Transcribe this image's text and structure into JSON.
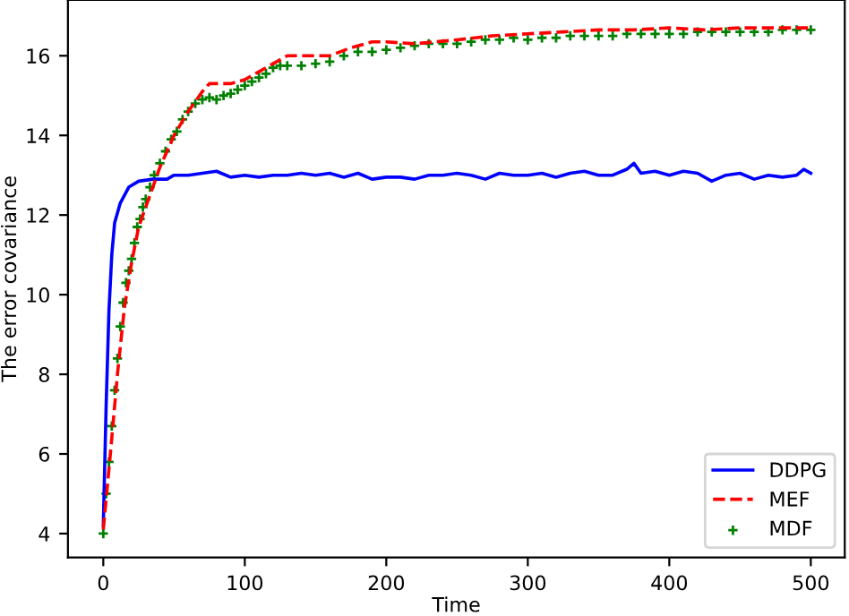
{
  "chart_data": {
    "type": "line",
    "xlabel": "Time",
    "ylabel": "The error covariance",
    "xlim": [
      -25,
      524
    ],
    "ylim": [
      3.4,
      17.4
    ],
    "xticks": [
      0,
      100,
      200,
      300,
      400,
      500
    ],
    "yticks": [
      4,
      6,
      8,
      10,
      12,
      14,
      16
    ],
    "grid": false,
    "legend": "bottom right",
    "series": [
      {
        "name": "DDPG",
        "color": "#0000ff",
        "line_style": "solid",
        "marker": "none",
        "x": [
          0,
          2,
          4,
          6,
          8,
          12,
          18,
          25,
          35,
          45,
          50,
          60,
          70,
          80,
          90,
          100,
          110,
          120,
          130,
          140,
          150,
          160,
          170,
          180,
          190,
          200,
          210,
          220,
          230,
          240,
          250,
          260,
          270,
          280,
          290,
          300,
          310,
          320,
          330,
          340,
          350,
          360,
          370,
          375,
          380,
          390,
          400,
          410,
          420,
          430,
          440,
          450,
          460,
          470,
          480,
          490,
          495,
          500
        ],
        "values": [
          4.2,
          7.2,
          9.6,
          11.0,
          11.8,
          12.3,
          12.7,
          12.85,
          12.9,
          12.9,
          13.0,
          13.0,
          13.05,
          13.1,
          12.95,
          13.0,
          12.95,
          13.0,
          13.0,
          13.05,
          13.0,
          13.05,
          12.95,
          13.05,
          12.9,
          12.95,
          12.95,
          12.9,
          13.0,
          13.0,
          13.05,
          13.0,
          12.9,
          13.05,
          13.0,
          13.0,
          13.05,
          12.95,
          13.05,
          13.1,
          13.0,
          13.0,
          13.15,
          13.3,
          13.05,
          13.1,
          13.0,
          13.1,
          13.05,
          12.85,
          13.0,
          13.05,
          12.9,
          13.0,
          12.95,
          13.0,
          13.15,
          13.05
        ]
      },
      {
        "name": "MEF",
        "color": "#ff0000",
        "line_style": "dashed",
        "marker": "none",
        "x": [
          0,
          5,
          10,
          15,
          20,
          25,
          30,
          40,
          50,
          60,
          70,
          75,
          90,
          100,
          110,
          120,
          130,
          145,
          160,
          175,
          190,
          200,
          220,
          250,
          275,
          300,
          325,
          350,
          375,
          400,
          425,
          450,
          475,
          500
        ],
        "values": [
          4.1,
          6.0,
          8.0,
          9.7,
          10.8,
          11.7,
          12.2,
          13.2,
          14.0,
          14.6,
          15.1,
          15.3,
          15.3,
          15.4,
          15.6,
          15.8,
          16.0,
          16.0,
          16.0,
          16.2,
          16.35,
          16.35,
          16.3,
          16.4,
          16.5,
          16.55,
          16.6,
          16.65,
          16.65,
          16.7,
          16.65,
          16.7,
          16.7,
          16.7
        ]
      },
      {
        "name": "MDF",
        "color": "#008000",
        "type": "scatter",
        "marker": "cross",
        "x": [
          0,
          2,
          4,
          6,
          8,
          10,
          12,
          14,
          16,
          18,
          20,
          22,
          24,
          26,
          28,
          30,
          33,
          36,
          40,
          44,
          48,
          52,
          56,
          60,
          65,
          70,
          75,
          80,
          85,
          90,
          95,
          100,
          105,
          110,
          115,
          120,
          125,
          130,
          140,
          150,
          160,
          170,
          180,
          190,
          200,
          210,
          220,
          230,
          240,
          250,
          260,
          270,
          280,
          290,
          300,
          310,
          320,
          330,
          340,
          350,
          360,
          370,
          380,
          390,
          400,
          410,
          420,
          430,
          440,
          450,
          460,
          470,
          480,
          490,
          500
        ],
        "values": [
          4.0,
          5.0,
          5.8,
          6.7,
          7.6,
          8.4,
          9.2,
          9.8,
          10.3,
          10.6,
          10.9,
          11.3,
          11.7,
          11.9,
          12.2,
          12.4,
          12.7,
          13.0,
          13.3,
          13.6,
          13.9,
          14.1,
          14.4,
          14.6,
          14.8,
          14.9,
          14.95,
          14.9,
          15.0,
          15.05,
          15.15,
          15.25,
          15.35,
          15.45,
          15.55,
          15.7,
          15.75,
          15.75,
          15.75,
          15.8,
          15.85,
          16.0,
          16.1,
          16.1,
          16.15,
          16.2,
          16.25,
          16.3,
          16.3,
          16.3,
          16.35,
          16.4,
          16.4,
          16.45,
          16.4,
          16.45,
          16.45,
          16.5,
          16.5,
          16.5,
          16.5,
          16.55,
          16.55,
          16.55,
          16.55,
          16.55,
          16.6,
          16.6,
          16.6,
          16.6,
          16.6,
          16.6,
          16.65,
          16.65,
          16.65
        ]
      }
    ]
  }
}
